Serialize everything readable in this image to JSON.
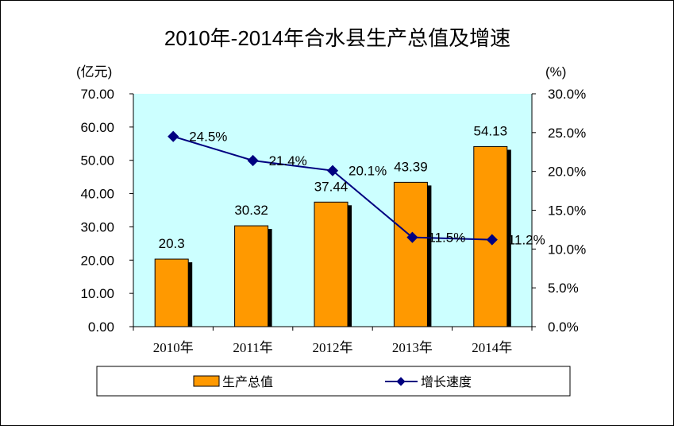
{
  "chart_data": {
    "type": "bar+line",
    "title": "2010年-2014年合水县生产总值及增速",
    "categories": [
      "2010年",
      "2011年",
      "2012年",
      "2013年",
      "2014年"
    ],
    "y_left_unit": "(亿元)",
    "y_right_unit": "(%)",
    "y_left": {
      "min": 0,
      "max": 70,
      "step": 10,
      "ticks": [
        "0.00",
        "10.00",
        "20.00",
        "30.00",
        "40.00",
        "50.00",
        "60.00",
        "70.00"
      ]
    },
    "y_right": {
      "min": 0,
      "max": 30,
      "step": 5,
      "ticks": [
        "0.0%",
        "5.0%",
        "10.0%",
        "15.0%",
        "20.0%",
        "25.0%",
        "30.0%"
      ]
    },
    "series": [
      {
        "name": "生产总值",
        "type": "bar",
        "axis": "left",
        "values": [
          20.3,
          30.32,
          37.44,
          43.39,
          54.13
        ],
        "labels": [
          "20.3",
          "30.32",
          "37.44",
          "43.39",
          "54.13"
        ],
        "color": "#FF9900"
      },
      {
        "name": "增长速度",
        "type": "line",
        "axis": "right",
        "values": [
          24.5,
          21.4,
          20.1,
          11.5,
          11.2
        ],
        "labels": [
          "24.5%",
          "21.4%",
          "20.1%",
          "11.5%",
          "11.2%"
        ],
        "color": "#000080"
      }
    ],
    "legend": [
      "生产总值",
      "增长速度"
    ],
    "colors": {
      "plot_bg": "#CCFFFF",
      "bar": "#FF9900",
      "line": "#000080",
      "shadow": "#000000"
    },
    "legend_position": "bottom"
  }
}
